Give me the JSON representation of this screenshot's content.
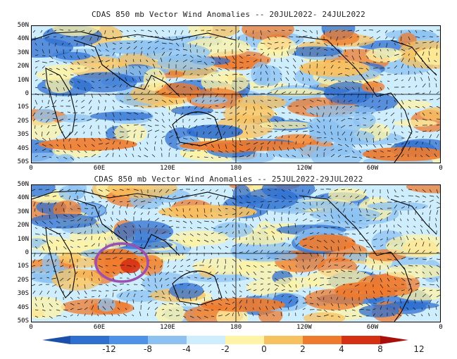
{
  "panels": [
    {
      "title": "CDAS 850 mb Vector Wind Anomalies -- 20JUL2022- 24JUL2022",
      "lat_labels": [
        "50N",
        "40N",
        "30N",
        "20N",
        "10N",
        "0",
        "10S",
        "20S",
        "30S",
        "40S",
        "50S"
      ],
      "lon_labels": [
        "0",
        "60E",
        "120E",
        "180",
        "120W",
        "60W",
        "0"
      ],
      "highlight_circle": false
    },
    {
      "title": "CDAS 850 mb Vector Wind Anomalies -- 25JUL2022-29JUL2022",
      "lat_labels": [
        "50N",
        "40N",
        "30N",
        "20N",
        "10N",
        "0",
        "10S",
        "20S",
        "30S",
        "40S",
        "50S"
      ],
      "lon_labels": [
        "0",
        "60E",
        "120E",
        "180",
        "120W",
        "60W",
        "0"
      ],
      "highlight_circle": true
    }
  ],
  "colorbar": {
    "labels": [
      "-12",
      "-8",
      "-4",
      "-2",
      "0",
      "2",
      "4",
      "8",
      "12"
    ],
    "colors": [
      "#1c4fa8",
      "#2f6fd0",
      "#4d91e8",
      "#8cc1f2",
      "#cfeefd",
      "#fff3a6",
      "#f8c160",
      "#ef7a2c",
      "#d63013",
      "#a80f0a"
    ]
  },
  "colors": {
    "negative_strong": "#2f6fd0",
    "negative_weak": "#8cc1f2",
    "neutral": "#cfeefd",
    "positive_weak": "#fff3a6",
    "positive_mid": "#f8c160",
    "positive_strong": "#ef7a2c",
    "circle": "#9b4fb0"
  }
}
